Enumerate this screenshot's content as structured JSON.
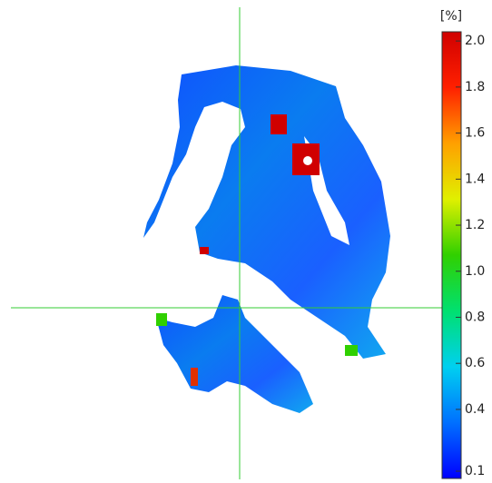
{
  "chart_data": {
    "type": "heatmap",
    "colorbar_label": "[%]",
    "clim": [
      0.1,
      2.04
    ],
    "colorbar_ticks": [
      {
        "value": 2.0,
        "label": "2.0"
      },
      1.8,
      1.6,
      1.4,
      1.2,
      {
        "value": 1.0,
        "label": "1.0"
      },
      0.8,
      0.6,
      0.4,
      0.1
    ],
    "colormap": [
      "#0000ff",
      "#0070ff",
      "#00d0f0",
      "#00e070",
      "#30d000",
      "#e0f000",
      "#ffa000",
      "#ff2000",
      "#d00000"
    ]
  }
}
